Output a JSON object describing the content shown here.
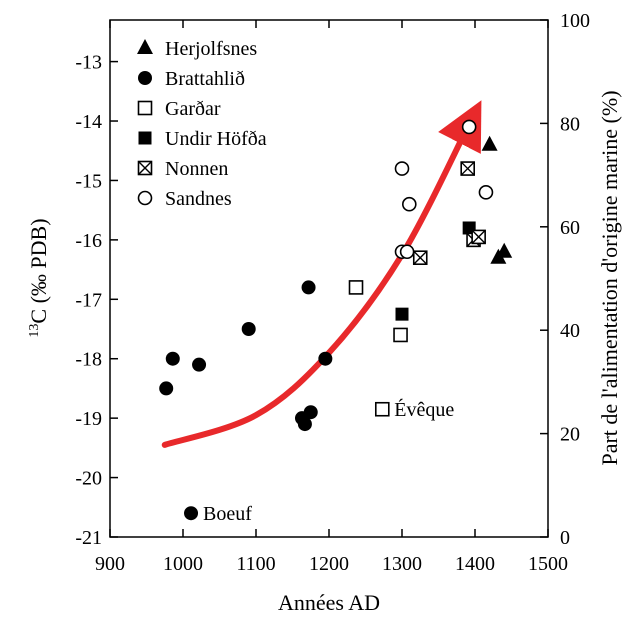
{
  "chart_data": {
    "type": "scatter",
    "xlabel": "Années AD",
    "ylabel_left": "13C (‰ PDB)",
    "ylabel_left_sup": "13",
    "ylabel_left_main": "C (‰ PDB)",
    "ylabel_right": "Part de l'alimentation d'origine marine (%)",
    "xlim": [
      900,
      1500
    ],
    "ylim_left": [
      -21,
      -12.3
    ],
    "ylim_right": [
      0,
      100
    ],
    "x_ticks": [
      900,
      1000,
      1100,
      1200,
      1300,
      1400,
      1500
    ],
    "y_left_ticks": [
      -13,
      -14,
      -15,
      -16,
      -17,
      -18,
      -19,
      -20,
      -21
    ],
    "y_right_ticks": [
      0,
      20,
      40,
      60,
      80,
      100
    ],
    "legend_position": "top-left",
    "series": [
      {
        "name": "Herjolfsnes",
        "marker": "triangle-filled",
        "points": [
          [
            1420,
            -14.4
          ],
          [
            1432,
            -16.3
          ],
          [
            1440,
            -16.2
          ]
        ]
      },
      {
        "name": "Brattahlið",
        "marker": "circle-filled",
        "points": [
          [
            977,
            -18.5
          ],
          [
            986,
            -18.0
          ],
          [
            1022,
            -18.1
          ],
          [
            1090,
            -17.5
          ],
          [
            1172,
            -16.8
          ],
          [
            1163,
            -19.0
          ],
          [
            1167,
            -19.1
          ],
          [
            1175,
            -18.9
          ],
          [
            1195,
            -18.0
          ]
        ]
      },
      {
        "name": "Garðar",
        "marker": "square-open",
        "points": [
          [
            1237,
            -16.8
          ],
          [
            1298,
            -17.6
          ]
        ]
      },
      {
        "name": "Undir Höfða",
        "marker": "square-filled",
        "points": [
          [
            1300,
            -17.25
          ],
          [
            1392,
            -15.8
          ]
        ]
      },
      {
        "name": "Nonnen",
        "marker": "square-cross",
        "points": [
          [
            1325,
            -16.3
          ],
          [
            1390,
            -14.8
          ],
          [
            1398,
            -16.0
          ],
          [
            1405,
            -15.95
          ]
        ]
      },
      {
        "name": "Sandnes",
        "marker": "circle-open",
        "points": [
          [
            1392,
            -14.1
          ],
          [
            1300,
            -14.8
          ],
          [
            1310,
            -15.4
          ],
          [
            1300,
            -16.2
          ],
          [
            1307,
            -16.2
          ],
          [
            1415,
            -15.2
          ]
        ]
      }
    ],
    "extra_points": [
      {
        "label": "Évêque",
        "marker": "square-open",
        "point": [
          1273,
          -18.85
        ]
      },
      {
        "label": "Boeuf",
        "marker": "circle-filled",
        "point": [
          1011,
          -20.6
        ]
      }
    ],
    "trend_arrow": {
      "color": "#e8292b",
      "points": [
        [
          975,
          -19.45
        ],
        [
          1100,
          -18.95
        ],
        [
          1200,
          -17.9
        ],
        [
          1300,
          -16.25
        ],
        [
          1390,
          -14.1
        ]
      ]
    }
  }
}
